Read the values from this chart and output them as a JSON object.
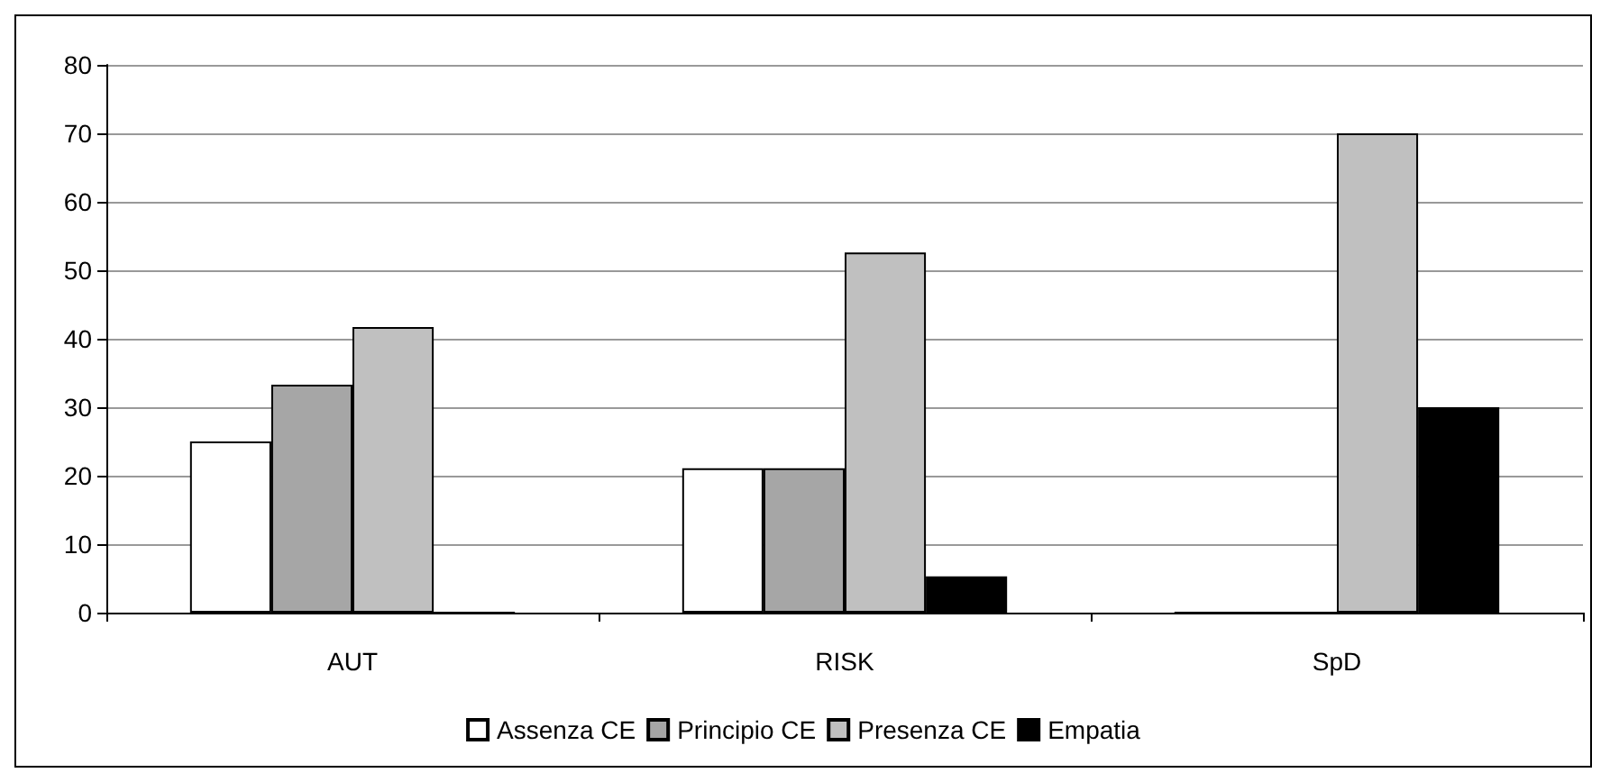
{
  "chart_data": {
    "type": "bar",
    "categories": [
      "AUT",
      "RISK",
      "SpD"
    ],
    "series": [
      {
        "name": "Assenza CE",
        "color": "#ffffff",
        "values": [
          25,
          21.1,
          0
        ]
      },
      {
        "name": "Principio CE",
        "color": "#a6a6a6",
        "values": [
          33.3,
          21.1,
          0
        ]
      },
      {
        "name": "Presenza CE",
        "color": "#c0c0c0",
        "values": [
          41.7,
          52.6,
          70
        ]
      },
      {
        "name": "Empatia",
        "color": "#000000",
        "values": [
          0,
          5.3,
          30
        ]
      }
    ],
    "ylim": [
      0,
      80
    ],
    "yticks": [
      0,
      10,
      20,
      30,
      40,
      50,
      60,
      70,
      80
    ],
    "grid": "y",
    "legend": "bottom"
  }
}
